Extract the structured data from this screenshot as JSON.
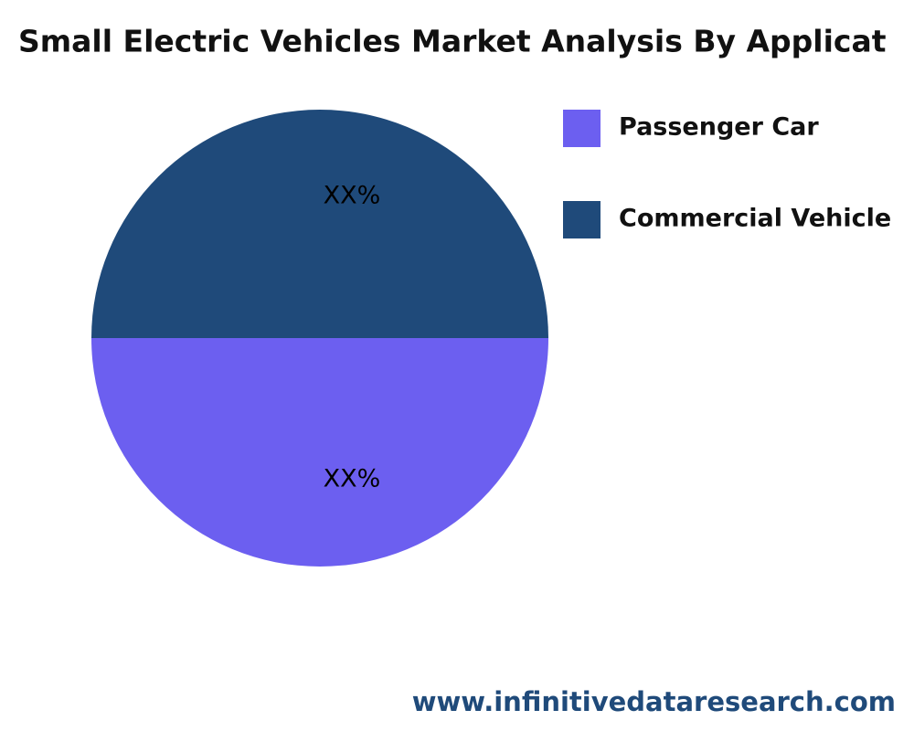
{
  "chart_data": {
    "type": "pie",
    "title": "Small Electric Vehicles Market Analysis By Applicat",
    "categories": [
      "Passenger Car",
      "Commercial Vehicle"
    ],
    "values": [
      50,
      50
    ],
    "value_labels": [
      "XX%",
      "XX%"
    ],
    "colors": [
      "#6c5ff0",
      "#1f4a7a"
    ],
    "legend": "upper right",
    "source": "www.infinitivedataresearch.com"
  }
}
